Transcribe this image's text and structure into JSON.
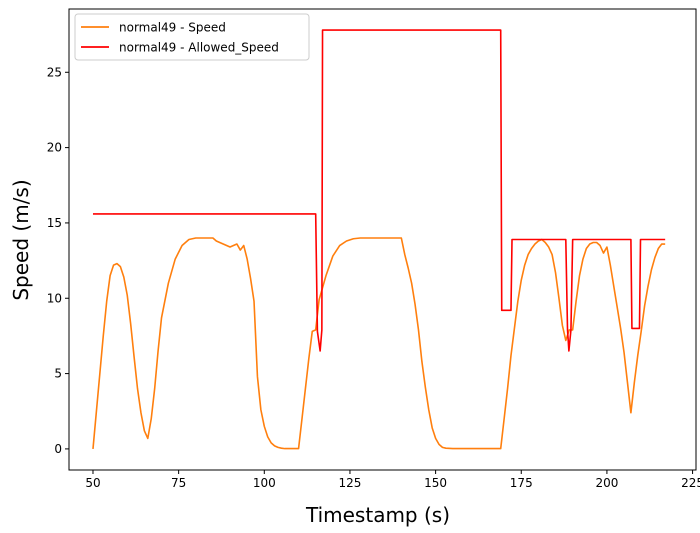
{
  "chart_data": {
    "type": "line",
    "xlabel": "Timestamp (s)",
    "ylabel": "Speed (m/s)",
    "xlim": [
      43,
      226
    ],
    "ylim": [
      -1.4,
      29.2
    ],
    "xticks": [
      50,
      75,
      100,
      125,
      150,
      175,
      200,
      225
    ],
    "yticks": [
      0,
      5,
      10,
      15,
      20,
      25
    ],
    "grid": false,
    "legend_position": "upper left",
    "series": [
      {
        "name": "normal49 - Speed",
        "color": "#ff7f0e",
        "x": [
          50,
          51,
          52,
          53,
          54,
          55,
          56,
          57,
          58,
          59,
          60,
          61,
          62,
          63,
          64,
          65,
          66,
          67,
          68,
          69,
          70,
          72,
          74,
          76,
          78,
          80,
          82,
          85,
          86,
          88,
          90,
          92,
          93,
          94,
          95,
          96,
          97,
          98,
          99,
          100,
          101,
          102,
          103,
          104,
          105,
          106,
          108,
          110,
          111,
          112,
          113,
          114,
          115,
          116,
          118,
          120,
          122,
          124,
          126,
          128,
          130,
          135,
          140,
          141,
          142,
          143,
          144,
          145,
          146,
          147,
          148,
          149,
          150,
          151,
          152,
          153,
          155,
          160,
          165,
          169,
          170,
          171,
          172,
          173,
          174,
          175,
          176,
          177,
          178,
          179,
          180,
          181,
          182,
          183,
          184,
          185,
          186,
          187,
          188,
          189,
          190,
          191,
          192,
          193,
          194,
          195,
          196,
          197,
          198,
          199,
          200,
          201,
          202,
          203,
          204,
          205,
          206,
          207,
          208,
          209,
          210,
          211,
          212,
          213,
          214,
          215,
          216,
          217
        ],
        "y": [
          0,
          2.5,
          5,
          7.5,
          9.8,
          11.5,
          12.2,
          12.3,
          12.1,
          11.4,
          10.2,
          8.3,
          6.1,
          4.0,
          2.4,
          1.2,
          0.7,
          2.0,
          4.0,
          6.5,
          8.7,
          11.0,
          12.6,
          13.5,
          13.9,
          14.0,
          14.0,
          14.0,
          13.8,
          13.6,
          13.4,
          13.6,
          13.2,
          13.5,
          12.6,
          11.3,
          9.8,
          4.8,
          2.6,
          1.5,
          0.8,
          0.4,
          0.2,
          0.1,
          0.05,
          0.02,
          0.02,
          0.02,
          2.0,
          4.0,
          6.0,
          7.8,
          7.9,
          9.9,
          11.5,
          12.8,
          13.5,
          13.8,
          13.95,
          14.0,
          14.0,
          14.0,
          14.0,
          12.9,
          12.0,
          11.0,
          9.6,
          7.9,
          5.8,
          4.1,
          2.6,
          1.4,
          0.7,
          0.3,
          0.1,
          0.05,
          0.02,
          0.02,
          0.02,
          0.02,
          2.0,
          4.0,
          6.2,
          8.0,
          9.8,
          11.2,
          12.2,
          12.9,
          13.3,
          13.6,
          13.8,
          13.9,
          13.7,
          13.4,
          12.9,
          11.7,
          10.0,
          8.2,
          7.2,
          7.9,
          7.9,
          9.8,
          11.5,
          12.6,
          13.3,
          13.6,
          13.7,
          13.7,
          13.5,
          13.0,
          13.4,
          12.2,
          10.8,
          9.4,
          8.0,
          6.4,
          4.4,
          2.4,
          4.4,
          6.2,
          7.8,
          9.5,
          10.8,
          11.9,
          12.7,
          13.3,
          13.6,
          13.6
        ]
      },
      {
        "name": "normal49 - Allowed_Speed",
        "color": "#ff0000",
        "x": [
          50,
          115,
          115.5,
          116.3,
          116.8,
          117,
          169,
          169.3,
          172,
          172.3,
          188,
          188.5,
          188.9,
          189.5,
          190,
          207,
          207.3,
          209.5,
          209.8,
          217
        ],
        "y": [
          15.6,
          15.6,
          7.8,
          6.5,
          7.9,
          27.8,
          27.8,
          9.2,
          9.2,
          13.9,
          13.9,
          7.9,
          6.5,
          7.9,
          13.9,
          13.9,
          8.0,
          8.0,
          13.9,
          13.9
        ]
      }
    ]
  }
}
